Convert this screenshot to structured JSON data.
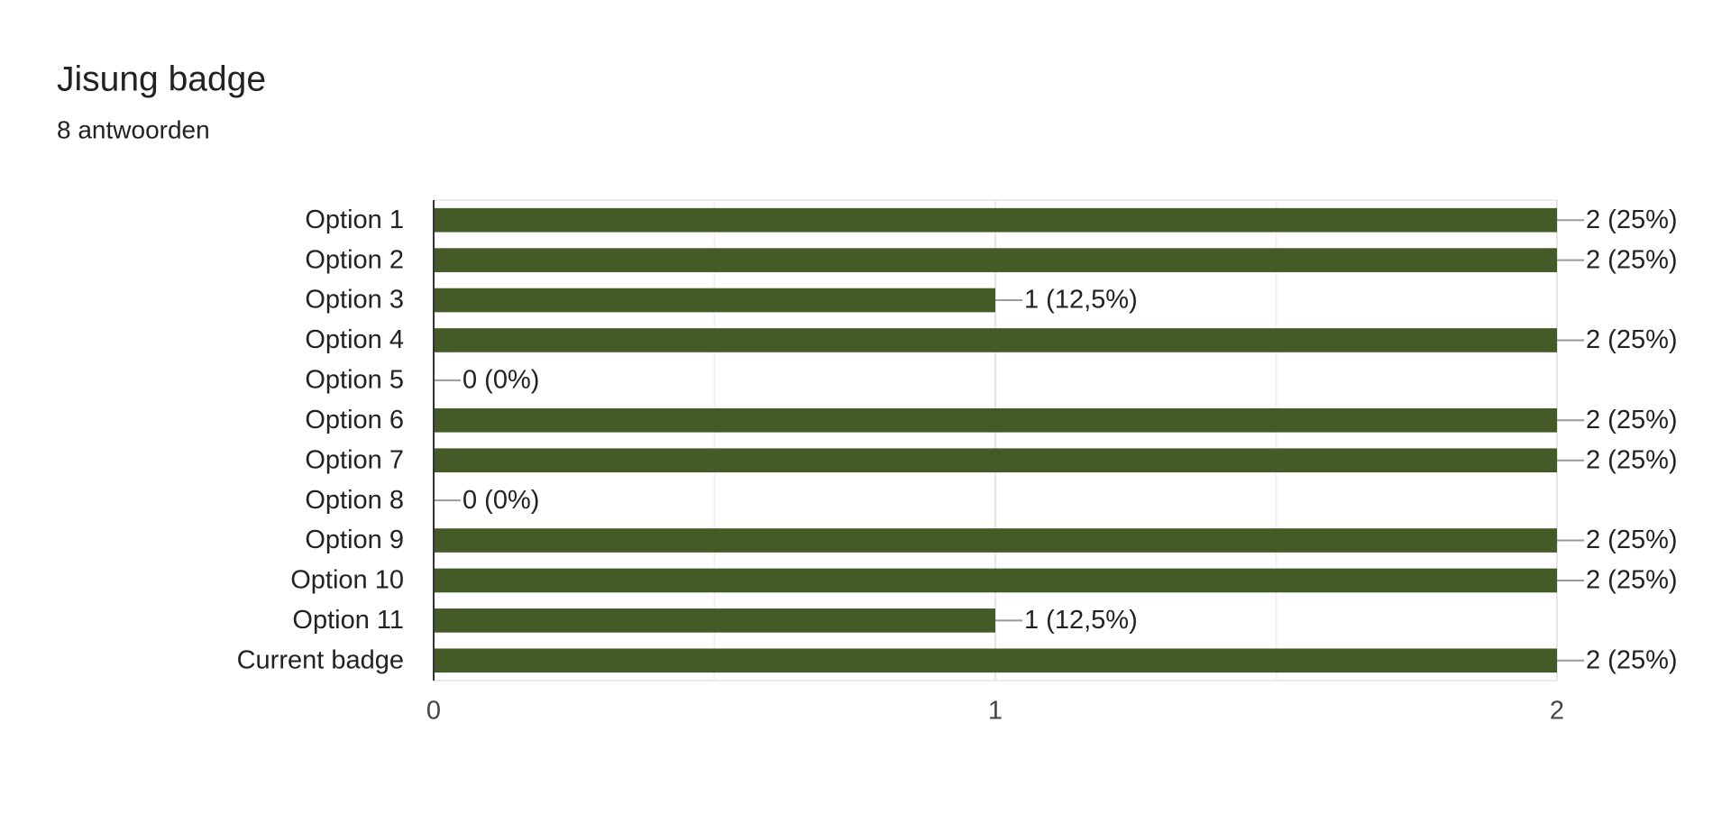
{
  "chart_data": {
    "type": "bar",
    "orientation": "horizontal",
    "title": "Jisung badge",
    "subtitle": "8 antwoorden",
    "categories": [
      "Option 1",
      "Option 2",
      "Option 3",
      "Option 4",
      "Option 5",
      "Option 6",
      "Option 7",
      "Option 8",
      "Option 9",
      "Option 10",
      "Option 11",
      "Current badge"
    ],
    "values": [
      2,
      2,
      1,
      2,
      0,
      2,
      2,
      0,
      2,
      2,
      1,
      2
    ],
    "value_labels": [
      "2 (25%)",
      "2 (25%)",
      "1 (12,5%)",
      "2 (25%)",
      "0 (0%)",
      "2 (25%)",
      "2 (25%)",
      "0 (0%)",
      "2 (25%)",
      "2 (25%)",
      "1 (12,5%)",
      "2 (25%)"
    ],
    "color": "#445b28",
    "xlim": [
      0,
      2
    ],
    "xticks": [
      0,
      1,
      2
    ],
    "minor_xticks": [
      0.5,
      1.5
    ],
    "grid": true
  }
}
